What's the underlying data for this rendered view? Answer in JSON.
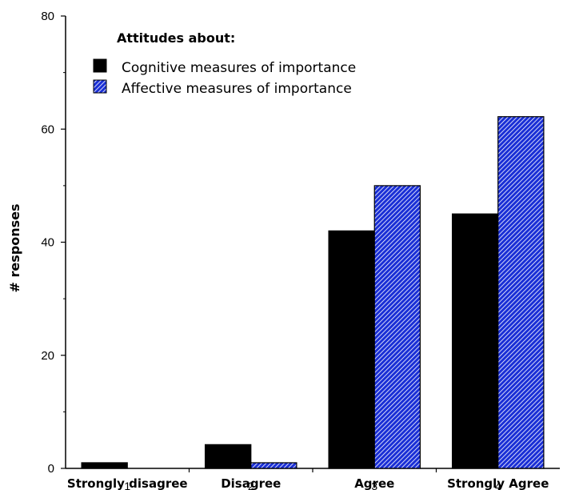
{
  "chart_data": {
    "type": "bar",
    "title": "",
    "xlabel": "",
    "ylabel": "# responses",
    "ylim": [
      0,
      80
    ],
    "yticks": [
      0,
      20,
      40,
      60,
      80
    ],
    "grid": false,
    "legend_placement": "top-left",
    "legend_title": "Attitudes about:",
    "categories": [
      "Strongly disagree",
      "Disagree",
      "Agree",
      "Strongly Agree"
    ],
    "category_numbers": [
      "1",
      "2",
      "3",
      "4"
    ],
    "series": [
      {
        "name": "Cognitive measures of importance",
        "values": [
          1,
          4.2,
          42,
          45
        ],
        "color": "#000000",
        "fill": "solid"
      },
      {
        "name": "Affective measures of importance",
        "values": [
          0,
          1,
          50,
          62.2
        ],
        "color": "#1a2fd6",
        "fill": "diagonal-hatch"
      }
    ]
  }
}
